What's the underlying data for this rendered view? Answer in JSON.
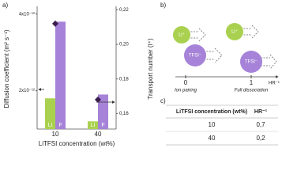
{
  "chart_data": {
    "type": "bar",
    "panel_label": "a)",
    "categories": [
      "10",
      "40"
    ],
    "series": [
      {
        "name": "Li",
        "color": "#a9d14f",
        "values": [
          1.8e-12,
          1.2e-12
        ]
      },
      {
        "name": "F",
        "color": "#a683d8",
        "values": [
          3.8e-12,
          1.9e-12
        ]
      },
      {
        "type": "scatter",
        "marker": "diamond",
        "color": "#3b1d4e",
        "axis": "y2",
        "values": [
          0.212,
          0.168
        ]
      }
    ],
    "ylabel": "Diffusion coefficient (m² s⁻¹)",
    "y2label": "Transport number (t⁺)",
    "xlabel": "LiTFSI concentration (wt%)",
    "ylim": [
      1e-12,
      4.2e-12
    ],
    "yticks": [
      {
        "value": 2e-12,
        "label": "2x10⁻¹²"
      },
      {
        "value": 4e-12,
        "label": "4x10⁻¹²"
      }
    ],
    "y2lim": [
      0.151,
      0.222
    ],
    "y2ticks": [
      {
        "value": 0.16,
        "label": "0,16"
      },
      {
        "value": 0.18,
        "label": "0,18"
      },
      {
        "value": 0.2,
        "label": "0,20"
      },
      {
        "value": 0.22,
        "label": "0,22"
      }
    ],
    "grid": false
  },
  "diagram": {
    "panel_label": "b)",
    "li": "Li⁺",
    "tfsi": "TFSI⁻",
    "tick_0": "0",
    "tick_1": "1",
    "label_0": "Ion pairing",
    "label_1": "Full dissociation",
    "axis_label": "HR⁻¹"
  },
  "table": {
    "panel_label": "c)",
    "header": [
      "LiTFSI concentration (wt%)",
      "HR⁻¹"
    ],
    "rows": [
      [
        "10",
        "0,7"
      ],
      [
        "40",
        "0,2"
      ]
    ]
  }
}
